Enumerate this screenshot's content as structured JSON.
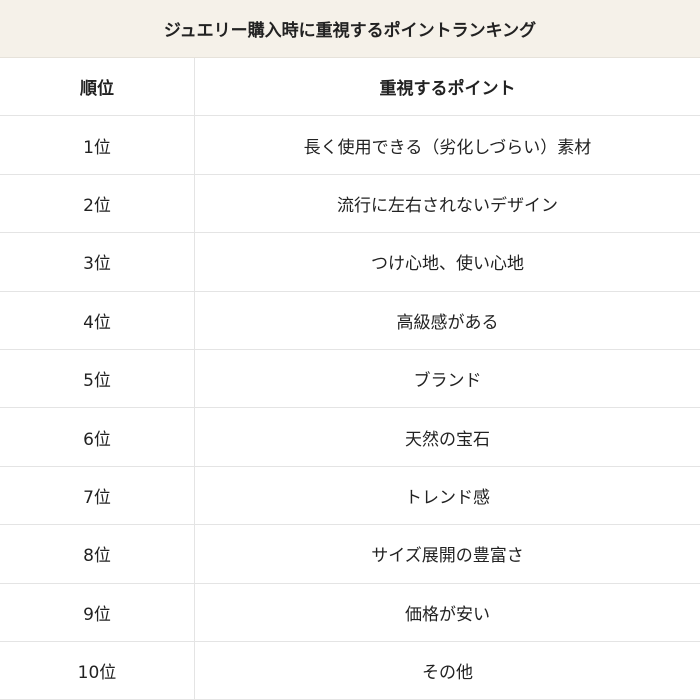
{
  "title": "ジュエリー購入時に重視するポイントランキング",
  "headers": {
    "rank": "順位",
    "point": "重視するポイント"
  },
  "rows": [
    {
      "rank": "1位",
      "point": "長く使用できる（劣化しづらい）素材"
    },
    {
      "rank": "2位",
      "point": "流行に左右されないデザイン"
    },
    {
      "rank": "3位",
      "point": "つけ心地、使い心地"
    },
    {
      "rank": "4位",
      "point": "高級感がある"
    },
    {
      "rank": "5位",
      "point": "ブランド"
    },
    {
      "rank": "6位",
      "point": "天然の宝石"
    },
    {
      "rank": "7位",
      "point": "トレンド感"
    },
    {
      "rank": "8位",
      "point": "サイズ展開の豊富さ"
    },
    {
      "rank": "9位",
      "point": "価格が安い"
    },
    {
      "rank": "10位",
      "point": "その他"
    }
  ]
}
